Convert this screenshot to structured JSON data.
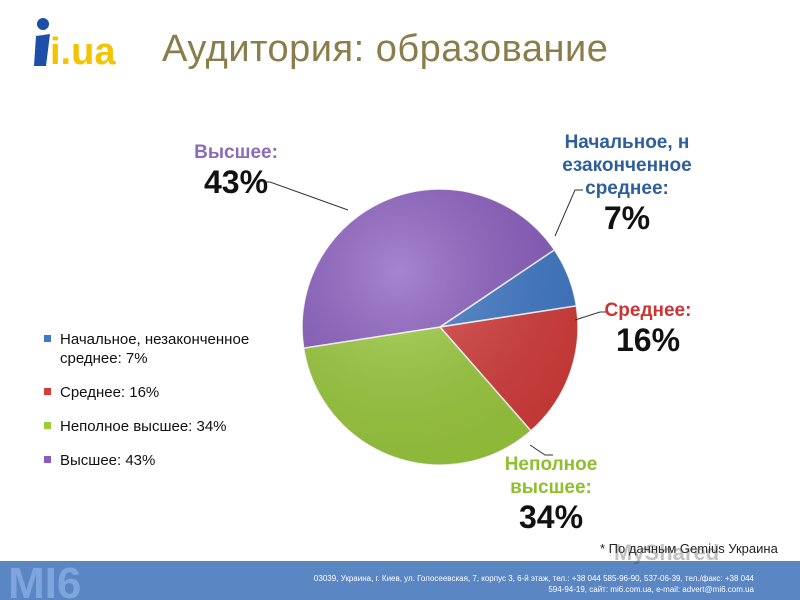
{
  "header": {
    "title": "Аудитория: образование",
    "logo_text": "i.ua"
  },
  "chart_data": {
    "type": "pie",
    "title": "Аудитория: образование",
    "slices": [
      {
        "label": "Начальное, незаконченное среднее",
        "value": 7,
        "color": "#3f79c9",
        "legend": "Начальное, незаконченное среднее: 7%",
        "callout_lines": [
          "Начальное, н",
          "езаконченное",
          "среднее:"
        ],
        "callout_value": "7%",
        "callout_color": "#2f5f9a"
      },
      {
        "label": "Среднее",
        "value": 16,
        "color": "#d63c3a",
        "legend": "Среднее: 16%",
        "callout_lines": [
          "Среднее:"
        ],
        "callout_value": "16%",
        "callout_color": "#cc3333"
      },
      {
        "label": "Неполное высшее",
        "value": 34,
        "color": "#9ccc3c",
        "legend": "Неполное высшее: 34%",
        "callout_lines": [
          "Неполное",
          "высшее:"
        ],
        "callout_value": "34%",
        "callout_color": "#8fbf2f"
      },
      {
        "label": "Высшее",
        "value": 43,
        "color": "#8a5cc0",
        "legend": "Высшее: 43%",
        "callout_lines": [
          "Высшее:"
        ],
        "callout_value": "43%",
        "callout_color": "#8a6cb8"
      }
    ],
    "legend_position": "left"
  },
  "source": "* По данным Gemius Украина",
  "footer": {
    "logo_text": "MI6",
    "address_line1": "03039, Украина, г. Киев, ул. Голосеевская, 7, корпус 3, 6-й этаж, тел.: +38 044 585-96-90, 537-06-39, тел./факс: +38 044",
    "address_line2": "594-94-19, сайт: mi6.com.ua, e-mail: advert@mi6.com.ua"
  },
  "watermark": "MyShared"
}
